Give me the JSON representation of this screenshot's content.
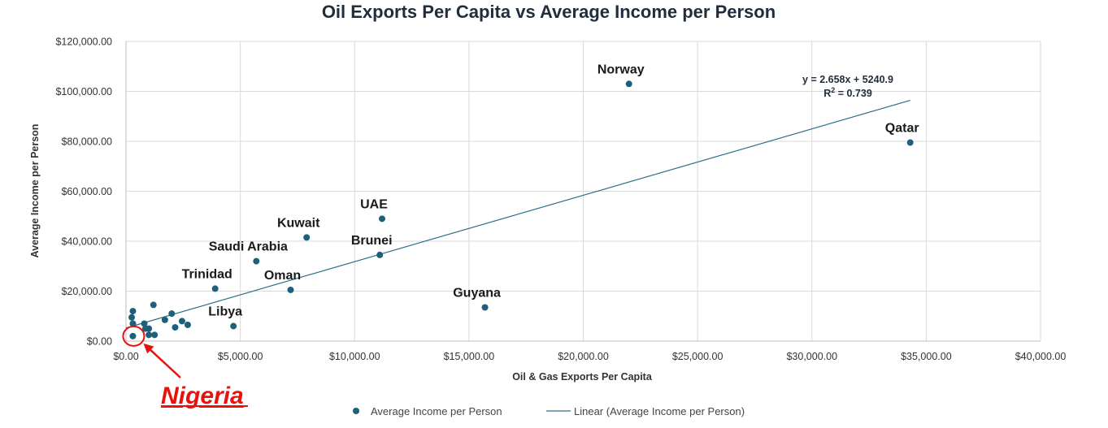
{
  "chart_data": {
    "type": "scatter",
    "title": "Oil Exports Per Capita vs Average Income per Person",
    "xlabel": "Oil & Gas Exports Per Capita",
    "ylabel": "Average Income per Person",
    "xlim": [
      0,
      40000
    ],
    "ylim": [
      0,
      120000
    ],
    "x_ticks": [
      "$0.00",
      "$5,000.00",
      "$10,000.00",
      "$15,000.00",
      "$20,000.00",
      "$25,000.00",
      "$30,000.00",
      "$35,000.00",
      "$40,000.00"
    ],
    "y_ticks": [
      "$0.00",
      "$20,000.00",
      "$40,000.00",
      "$60,000.00",
      "$80,000.00",
      "$100,000.00",
      "$120,000.00"
    ],
    "grid": true,
    "legend_position": "bottom",
    "colors": {
      "marker": "#1f5f7a",
      "trendline": "#2e6e8c",
      "callout": "#e8120c",
      "title": "#1f2d3d"
    },
    "series": [
      {
        "name": "Average Income per Person",
        "points": [
          {
            "x": 22000,
            "y": 103000,
            "label": "Norway"
          },
          {
            "x": 34300,
            "y": 79500,
            "label": "Qatar"
          },
          {
            "x": 11200,
            "y": 49000,
            "label": "UAE"
          },
          {
            "x": 7900,
            "y": 41500,
            "label": "Kuwait"
          },
          {
            "x": 11100,
            "y": 34500,
            "label": "Brunei"
          },
          {
            "x": 5700,
            "y": 32000,
            "label": "Saudi Arabia"
          },
          {
            "x": 3900,
            "y": 21000,
            "label": "Trinidad"
          },
          {
            "x": 7200,
            "y": 20500,
            "label": "Oman"
          },
          {
            "x": 15700,
            "y": 13500,
            "label": "Guyana"
          },
          {
            "x": 4700,
            "y": 6000,
            "label": "Libya"
          },
          {
            "x": 300,
            "y": 2000,
            "label": ""
          },
          {
            "x": 300,
            "y": 12000,
            "label": ""
          },
          {
            "x": 250,
            "y": 9500,
            "label": ""
          },
          {
            "x": 300,
            "y": 7000,
            "label": ""
          },
          {
            "x": 1200,
            "y": 14500,
            "label": ""
          },
          {
            "x": 800,
            "y": 7000,
            "label": ""
          },
          {
            "x": 850,
            "y": 5000,
            "label": ""
          },
          {
            "x": 1000,
            "y": 5000,
            "label": ""
          },
          {
            "x": 1000,
            "y": 2500,
            "label": ""
          },
          {
            "x": 1250,
            "y": 2500,
            "label": ""
          },
          {
            "x": 1700,
            "y": 8500,
            "label": ""
          },
          {
            "x": 2000,
            "y": 11000,
            "label": ""
          },
          {
            "x": 2150,
            "y": 5500,
            "label": ""
          },
          {
            "x": 2450,
            "y": 8000,
            "label": ""
          },
          {
            "x": 2700,
            "y": 6500,
            "label": ""
          }
        ]
      }
    ],
    "trendline": {
      "name": "Linear (Average Income per Person)",
      "slope": 2.658,
      "intercept": 5240.9,
      "x_range": [
        0,
        34300
      ],
      "equation": "y = 2.658x + 5240.9",
      "r2_prefix": "R",
      "r2_sup": "2",
      "r2_suffix": " = 0.739"
    },
    "annotations": {
      "highlight_label": "Nigeria",
      "highlight_point": {
        "x": 300,
        "y": 2000
      }
    }
  }
}
